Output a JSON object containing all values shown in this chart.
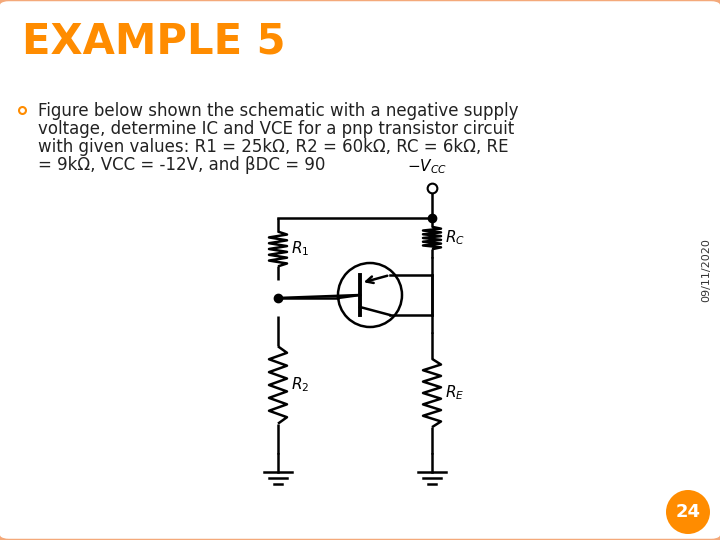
{
  "title": "EXAMPLE 5",
  "title_color": "#FF8C00",
  "date_text": "09/11/2020",
  "body_text_line1": "Figure below shown the schematic with a negative supply",
  "body_text_line2": "voltage, determine IC and VCE for a pnp transistor circuit",
  "body_text_line3": "with given values: R1 = 25kΩ, R2 = 60kΩ, RC = 6kΩ, RE",
  "body_text_line4": "= 9kΩ, VCC = -12V, and βDC = 90",
  "bullet_color": "#FF8C00",
  "background_color": "#FFFFFF",
  "border_color": "#F4A97A",
  "page_number": "24",
  "page_num_bg": "#FF8C00"
}
